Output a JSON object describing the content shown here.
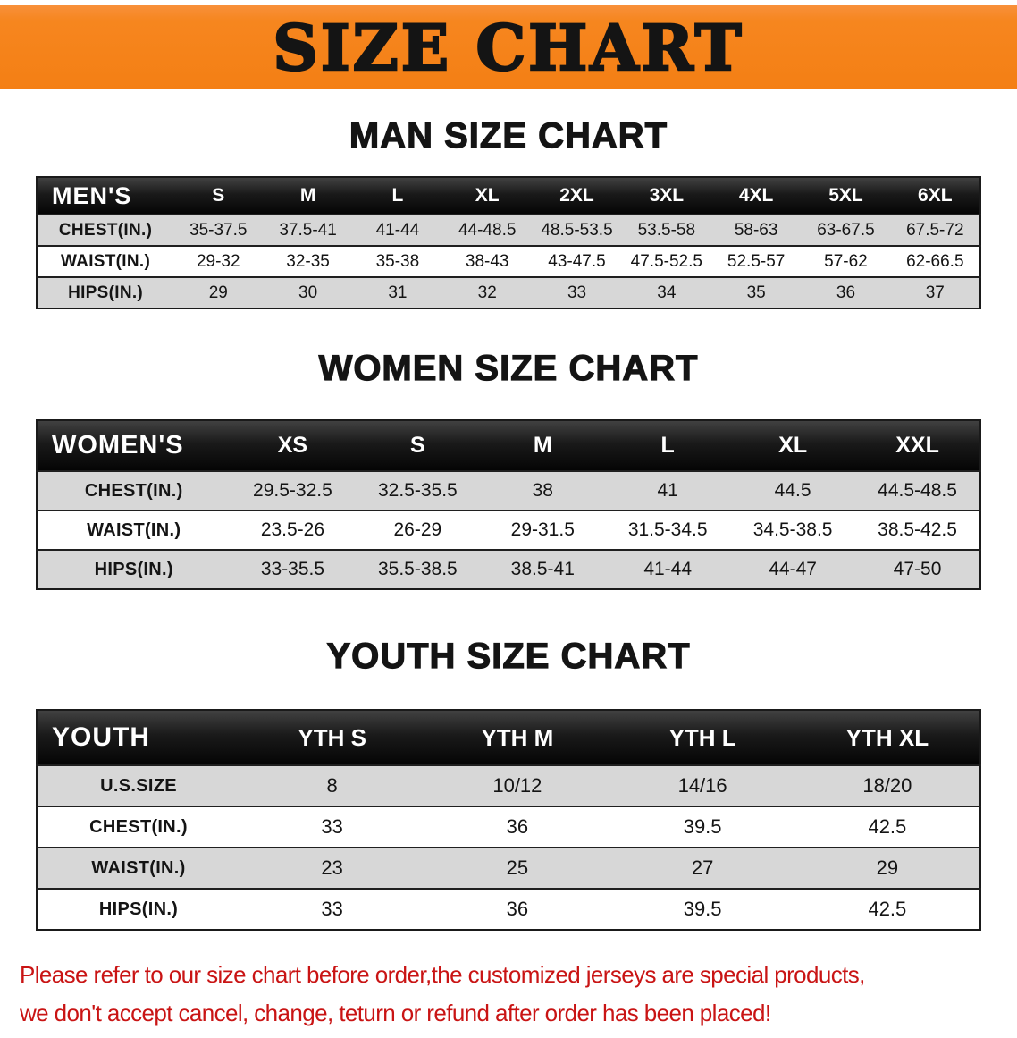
{
  "banner": {
    "title": "SIZE CHART",
    "bg_color": "#f6861f",
    "text_color": "#141414"
  },
  "sections": [
    {
      "heading": "MAN SIZE CHART",
      "table": {
        "label": "MEN'S",
        "columns": [
          "S",
          "M",
          "L",
          "XL",
          "2XL",
          "3XL",
          "4XL",
          "5XL",
          "6XL"
        ],
        "rows": [
          {
            "label": "CHEST(IN.)",
            "values": [
              "35-37.5",
              "37.5-41",
              "41-44",
              "44-48.5",
              "48.5-53.5",
              "53.5-58",
              "58-63",
              "63-67.5",
              "67.5-72"
            ]
          },
          {
            "label": "WAIST(IN.)",
            "values": [
              "29-32",
              "32-35",
              "35-38",
              "38-43",
              "43-47.5",
              "47.5-52.5",
              "52.5-57",
              "57-62",
              "62-66.5"
            ]
          },
          {
            "label": "HIPS(IN.)",
            "values": [
              "29",
              "30",
              "31",
              "32",
              "33",
              "34",
              "35",
              "36",
              "37"
            ]
          }
        ]
      }
    },
    {
      "heading": "WOMEN SIZE CHART",
      "table": {
        "label": "WOMEN'S",
        "columns": [
          "XS",
          "S",
          "M",
          "L",
          "XL",
          "XXL"
        ],
        "rows": [
          {
            "label": "CHEST(IN.)",
            "values": [
              "29.5-32.5",
              "32.5-35.5",
              "38",
              "41",
              "44.5",
              "44.5-48.5"
            ]
          },
          {
            "label": "WAIST(IN.)",
            "values": [
              "23.5-26",
              "26-29",
              "29-31.5",
              "31.5-34.5",
              "34.5-38.5",
              "38.5-42.5"
            ]
          },
          {
            "label": "HIPS(IN.)",
            "values": [
              "33-35.5",
              "35.5-38.5",
              "38.5-41",
              "41-44",
              "44-47",
              "47-50"
            ]
          }
        ]
      }
    },
    {
      "heading": "YOUTH SIZE CHART",
      "table": {
        "label": "YOUTH",
        "columns": [
          "YTH S",
          "YTH M",
          "YTH L",
          "YTH XL"
        ],
        "rows": [
          {
            "label": "U.S.SIZE",
            "values": [
              "8",
              "10/12",
              "14/16",
              "18/20"
            ]
          },
          {
            "label": "CHEST(IN.)",
            "values": [
              "33",
              "36",
              "39.5",
              "42.5"
            ]
          },
          {
            "label": "WAIST(IN.)",
            "values": [
              "23",
              "25",
              "27",
              "29"
            ]
          },
          {
            "label": "HIPS(IN.)",
            "values": [
              "33",
              "36",
              "39.5",
              "42.5"
            ]
          }
        ]
      }
    }
  ],
  "footer": {
    "line1": "Please refer to our size chart before order,the customized jerseys are special products,",
    "line2": "we don't accept cancel, change, teturn or refund after order has been placed!",
    "text_color": "#c91414"
  }
}
